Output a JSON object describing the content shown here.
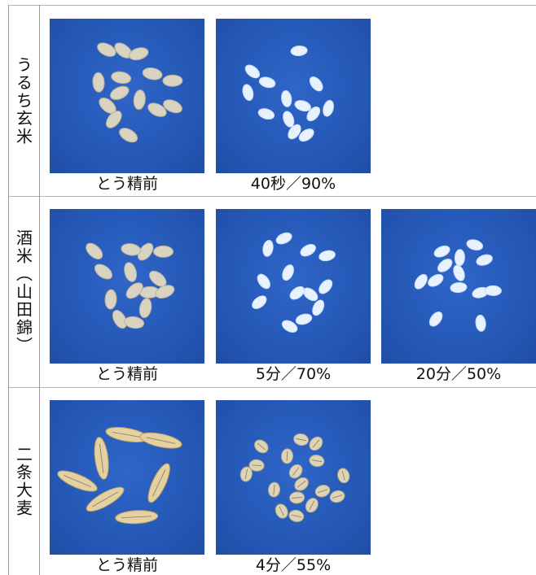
{
  "rows": [
    {
      "label": "うるち玄米",
      "cells": [
        {
          "caption": "とう精前",
          "grain": "brown-rice"
        },
        {
          "caption": "40秒／90%",
          "grain": "white-rice"
        }
      ]
    },
    {
      "label": "酒米（山田錦）",
      "cells": [
        {
          "caption": "とう精前",
          "grain": "brown-rice"
        },
        {
          "caption": "5分／70%",
          "grain": "white-rice"
        },
        {
          "caption": "20分／50%",
          "grain": "white-rice"
        }
      ]
    },
    {
      "label": "二条大麦",
      "cells": [
        {
          "caption": "とう精前",
          "grain": "barley"
        },
        {
          "caption": "4分／55%",
          "grain": "polished-barley"
        }
      ]
    }
  ],
  "colors": {
    "photo_background": "#2558b6",
    "brown_rice": "#d9d4c2",
    "white_rice": "#e8f2ff",
    "barley": "#e3d1a3",
    "polished_barley": "#ddd3b6",
    "grid_line": "#b5b5b5"
  }
}
